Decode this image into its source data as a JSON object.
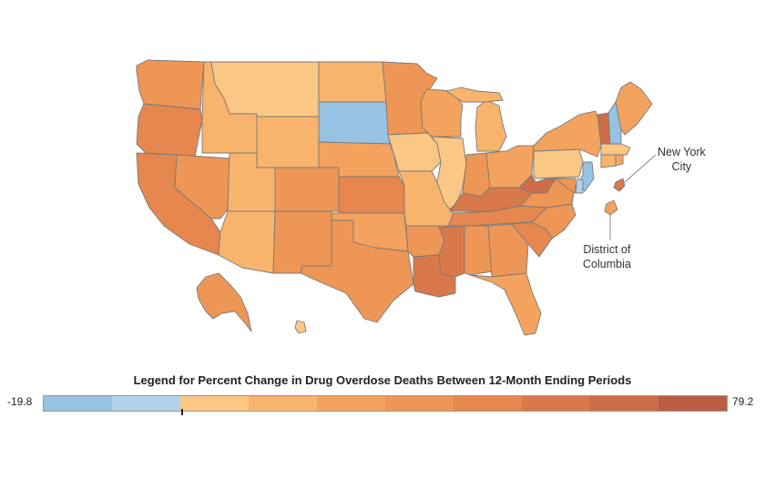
{
  "legend": {
    "title": "Legend for Percent Change in Drug Overdose Deaths Between 12-Month Ending Periods",
    "min_label": "-19.8",
    "max_label": "79.2",
    "min_value": -19.8,
    "max_value": 79.2,
    "bins": [
      {
        "color": "#97c2e2"
      },
      {
        "color": "#b0d2ea"
      },
      {
        "color": "#fbc785"
      },
      {
        "color": "#f8b46d"
      },
      {
        "color": "#f4a35e"
      },
      {
        "color": "#ee9655"
      },
      {
        "color": "#e5874e"
      },
      {
        "color": "#d9784b"
      },
      {
        "color": "#cd6d48"
      },
      {
        "color": "#b95e45"
      }
    ]
  },
  "callouts": {
    "nyc": {
      "line1": "New York",
      "line2": "City"
    },
    "dc": {
      "line1": "District of",
      "line2": "Columbia"
    }
  },
  "states": [
    {
      "name": "WA",
      "color": "#ee9655"
    },
    {
      "name": "OR",
      "color": "#e5874e"
    },
    {
      "name": "CA",
      "color": "#e5874e"
    },
    {
      "name": "NV",
      "color": "#ee9655"
    },
    {
      "name": "ID",
      "color": "#f8b46d"
    },
    {
      "name": "MT",
      "color": "#fbc785"
    },
    {
      "name": "WY",
      "color": "#f8b46d"
    },
    {
      "name": "UT",
      "color": "#f8b46d"
    },
    {
      "name": "AZ",
      "color": "#f8b46d"
    },
    {
      "name": "CO",
      "color": "#ee9655"
    },
    {
      "name": "NM",
      "color": "#ee9655"
    },
    {
      "name": "ND",
      "color": "#f8b46d"
    },
    {
      "name": "SD",
      "color": "#97c2e2"
    },
    {
      "name": "NE",
      "color": "#f4a35e"
    },
    {
      "name": "KS",
      "color": "#e5874e"
    },
    {
      "name": "OK",
      "color": "#f4a35e"
    },
    {
      "name": "TX",
      "color": "#ee9655"
    },
    {
      "name": "MN",
      "color": "#ee9655"
    },
    {
      "name": "IA",
      "color": "#fbc785"
    },
    {
      "name": "MO",
      "color": "#f8b46d"
    },
    {
      "name": "AR",
      "color": "#ee9655"
    },
    {
      "name": "LA",
      "color": "#d9784b"
    },
    {
      "name": "WI",
      "color": "#f4a35e"
    },
    {
      "name": "IL",
      "color": "#fbc785"
    },
    {
      "name": "MI",
      "color": "#f8b46d"
    },
    {
      "name": "IN",
      "color": "#ee9655"
    },
    {
      "name": "OH",
      "color": "#f4a35e"
    },
    {
      "name": "KY",
      "color": "#d9784b"
    },
    {
      "name": "TN",
      "color": "#e5874e"
    },
    {
      "name": "MS",
      "color": "#d9784b"
    },
    {
      "name": "AL",
      "color": "#ee9655"
    },
    {
      "name": "GA",
      "color": "#ee9655"
    },
    {
      "name": "FL",
      "color": "#f4a35e"
    },
    {
      "name": "SC",
      "color": "#e5874e"
    },
    {
      "name": "NC",
      "color": "#ee9655"
    },
    {
      "name": "VA",
      "color": "#ee9655"
    },
    {
      "name": "WV",
      "color": "#cd6d48"
    },
    {
      "name": "PA",
      "color": "#fbc785"
    },
    {
      "name": "NY",
      "color": "#f4a35e"
    },
    {
      "name": "VT",
      "color": "#cd6d48"
    },
    {
      "name": "NH",
      "color": "#97c2e2"
    },
    {
      "name": "ME",
      "color": "#f4a35e"
    },
    {
      "name": "MA",
      "color": "#fbc785"
    },
    {
      "name": "CT",
      "color": "#f8b46d"
    },
    {
      "name": "RI",
      "color": "#f4a35e"
    },
    {
      "name": "NJ",
      "color": "#97c2e2"
    },
    {
      "name": "DE",
      "color": "#b0d2ea"
    },
    {
      "name": "MD",
      "color": "#ee9655"
    },
    {
      "name": "DC",
      "color": "#f4a35e"
    },
    {
      "name": "NYC",
      "color": "#d9784b"
    },
    {
      "name": "AK",
      "color": "#ee9655"
    },
    {
      "name": "HI",
      "color": "#fbc785"
    }
  ]
}
